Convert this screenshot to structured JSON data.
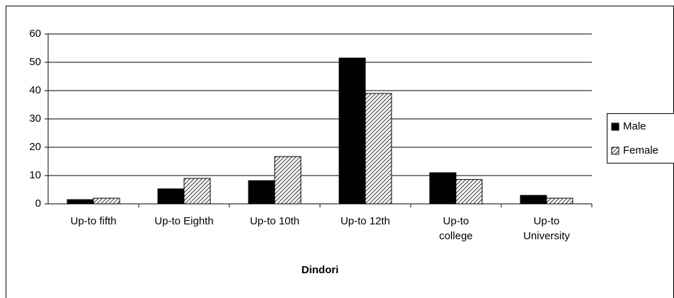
{
  "chart_data": {
    "type": "bar",
    "xlabel": "Dindori",
    "categories": [
      "Up-to fifth",
      "Up-to Eighth",
      "Up-to 10th",
      "Up-to 12th",
      "Up-to\ncollege",
      "Up-to\nUniversity"
    ],
    "series": [
      {
        "name": "Male",
        "color": "#000000",
        "values": [
          1.5,
          5.3,
          8.2,
          51.5,
          11,
          3
        ]
      },
      {
        "name": "Female",
        "color": "hatch",
        "values": [
          2,
          9,
          16.7,
          39,
          8.6,
          2
        ]
      }
    ],
    "ylim": [
      0,
      60
    ],
    "yticks": [
      0,
      10,
      20,
      30,
      40,
      50,
      60
    ],
    "grid": true,
    "legend": "right"
  }
}
